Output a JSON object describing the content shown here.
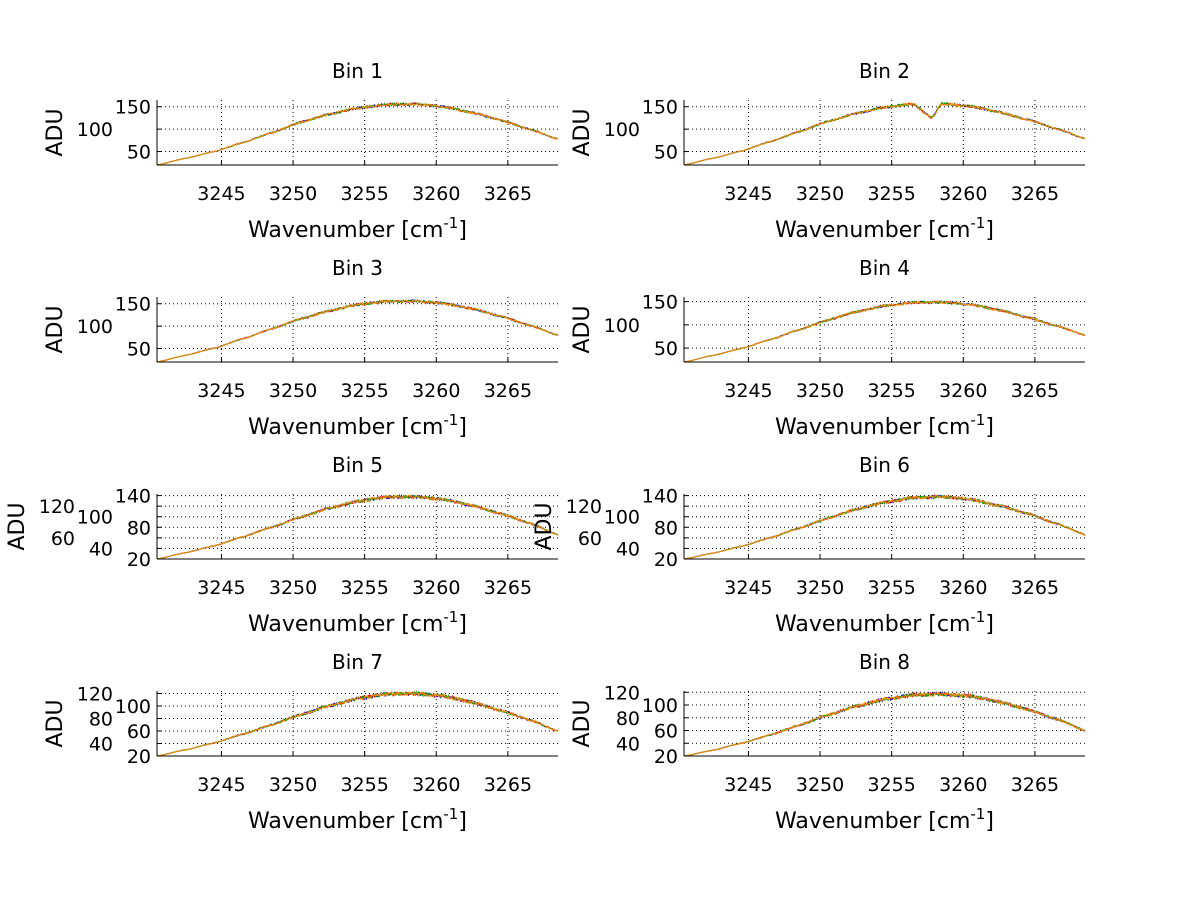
{
  "chart_data": [
    {
      "type": "line",
      "title": "Bin 1",
      "xlabel": "Wavenumber [cm",
      "xlabel_sup": "-1",
      "xlabel_end": "]",
      "ylabel": "ADU",
      "xlim": [
        3240.5,
        3268.5
      ],
      "ylim": [
        20,
        165
      ],
      "xticks": [
        3245,
        3250,
        3255,
        3260,
        3265
      ],
      "yticks": [
        50,
        100,
        150
      ],
      "grid": true,
      "x": [
        3240.5,
        3242.5,
        3244.5,
        3246.5,
        3248.5,
        3250.5,
        3252.5,
        3254.5,
        3256.5,
        3258.5,
        3260.5,
        3262.5,
        3264.5,
        3266.5,
        3268.5
      ],
      "y": [
        20,
        35,
        50,
        70,
        92,
        115,
        133,
        147,
        155,
        156,
        150,
        137,
        120,
        100,
        78
      ]
    },
    {
      "type": "line",
      "title": "Bin 2",
      "xlabel": "Wavenumber [cm",
      "xlabel_sup": "-1",
      "xlabel_end": "]",
      "ylabel": "ADU",
      "xlim": [
        3240.5,
        3268.5
      ],
      "ylim": [
        20,
        165
      ],
      "xticks": [
        3245,
        3250,
        3255,
        3260,
        3265
      ],
      "yticks": [
        50,
        100,
        150
      ],
      "grid": true,
      "x": [
        3240.5,
        3242.5,
        3244.5,
        3246.5,
        3248.5,
        3250.5,
        3252.5,
        3254.5,
        3256.5,
        3257.8,
        3258.5,
        3260.5,
        3262.5,
        3264.5,
        3266.5,
        3268.5
      ],
      "y": [
        20,
        35,
        51,
        72,
        94,
        117,
        135,
        149,
        156,
        125,
        157,
        151,
        138,
        121,
        101,
        79
      ]
    },
    {
      "type": "line",
      "title": "Bin 3",
      "xlabel": "Wavenumber [cm",
      "xlabel_sup": "-1",
      "xlabel_end": "]",
      "ylabel": "ADU",
      "xlim": [
        3240.5,
        3268.5
      ],
      "ylim": [
        20,
        165
      ],
      "xticks": [
        3245,
        3250,
        3255,
        3260,
        3265
      ],
      "yticks": [
        50,
        100,
        150
      ],
      "grid": true,
      "x": [
        3240.5,
        3242.5,
        3244.5,
        3246.5,
        3248.5,
        3250.5,
        3252.5,
        3254.5,
        3256.5,
        3258.5,
        3260.5,
        3262.5,
        3264.5,
        3266.5,
        3268.5
      ],
      "y": [
        20,
        35,
        51,
        72,
        94,
        116,
        134,
        148,
        155,
        156,
        151,
        139,
        122,
        102,
        80
      ]
    },
    {
      "type": "line",
      "title": "Bin 4",
      "xlabel": "Wavenumber [cm",
      "xlabel_sup": "-1",
      "xlabel_end": "]",
      "ylabel": "ADU",
      "xlim": [
        3240.5,
        3268.5
      ],
      "ylim": [
        20,
        160
      ],
      "xticks": [
        3245,
        3250,
        3255,
        3260,
        3265
      ],
      "yticks": [
        50,
        100,
        150
      ],
      "grid": true,
      "x": [
        3240.5,
        3242.5,
        3244.5,
        3246.5,
        3248.5,
        3250.5,
        3252.5,
        3254.5,
        3256.5,
        3258.5,
        3260.5,
        3262.5,
        3264.5,
        3266.5,
        3268.5
      ],
      "y": [
        20,
        34,
        49,
        68,
        89,
        110,
        128,
        141,
        148,
        149,
        144,
        132,
        116,
        98,
        78
      ]
    },
    {
      "type": "line",
      "title": "Bin 5",
      "xlabel": "Wavenumber [cm",
      "xlabel_sup": "-1",
      "xlabel_end": "]",
      "ylabel": "ADU",
      "xlim": [
        3240.5,
        3268.5
      ],
      "ylim": [
        20,
        143
      ],
      "xticks": [
        3245,
        3250,
        3255,
        3260,
        3265
      ],
      "yticks": [
        20,
        40,
        60,
        80,
        100,
        120,
        140
      ],
      "grid": true,
      "x": [
        3240.5,
        3242.5,
        3244.5,
        3246.5,
        3248.5,
        3250.5,
        3252.5,
        3254.5,
        3256.5,
        3258.5,
        3260.5,
        3262.5,
        3264.5,
        3266.5,
        3268.5
      ],
      "y": [
        20,
        32,
        45,
        62,
        80,
        99,
        116,
        129,
        137,
        138,
        133,
        121,
        106,
        88,
        66
      ]
    },
    {
      "type": "line",
      "title": "Bin 6",
      "xlabel": "Wavenumber [cm",
      "xlabel_sup": "-1",
      "xlabel_end": "]",
      "ylabel": "ADU",
      "xlim": [
        3240.5,
        3268.5
      ],
      "ylim": [
        20,
        143
      ],
      "xticks": [
        3245,
        3250,
        3255,
        3260,
        3265
      ],
      "yticks": [
        20,
        40,
        60,
        80,
        100,
        120,
        140
      ],
      "grid": true,
      "x": [
        3240.5,
        3242.5,
        3244.5,
        3246.5,
        3248.5,
        3250.5,
        3252.5,
        3254.5,
        3256.5,
        3258.5,
        3260.5,
        3262.5,
        3264.5,
        3266.5,
        3268.5
      ],
      "y": [
        20,
        31,
        44,
        60,
        78,
        97,
        114,
        127,
        136,
        138,
        133,
        121,
        106,
        87,
        66
      ]
    },
    {
      "type": "line",
      "title": "Bin 7",
      "xlabel": "Wavenumber [cm",
      "xlabel_sup": "-1",
      "xlabel_end": "]",
      "ylabel": "ADU",
      "xlim": [
        3240.5,
        3268.5
      ],
      "ylim": [
        20,
        124
      ],
      "xticks": [
        3245,
        3250,
        3255,
        3260,
        3265
      ],
      "yticks": [
        20,
        40,
        60,
        80,
        100,
        120
      ],
      "grid": true,
      "x": [
        3240.5,
        3242.5,
        3244.5,
        3246.5,
        3248.5,
        3250.5,
        3252.5,
        3254.5,
        3256.5,
        3258.5,
        3260.5,
        3262.5,
        3264.5,
        3266.5,
        3268.5
      ],
      "y": [
        20,
        30,
        41,
        55,
        70,
        86,
        100,
        112,
        119,
        120,
        116,
        106,
        93,
        78,
        60
      ]
    },
    {
      "type": "line",
      "title": "Bin 8",
      "xlabel": "Wavenumber [cm",
      "xlabel_sup": "-1",
      "xlabel_end": "]",
      "ylabel": "ADU",
      "xlim": [
        3240.5,
        3268.5
      ],
      "ylim": [
        20,
        122
      ],
      "xticks": [
        3245,
        3250,
        3255,
        3260,
        3265
      ],
      "yticks": [
        20,
        40,
        60,
        80,
        100,
        120
      ],
      "grid": true,
      "x": [
        3240.5,
        3242.5,
        3244.5,
        3246.5,
        3248.5,
        3250.5,
        3252.5,
        3254.5,
        3256.5,
        3258.5,
        3260.5,
        3262.5,
        3264.5,
        3266.5,
        3268.5
      ],
      "y": [
        20,
        29,
        40,
        53,
        68,
        84,
        98,
        109,
        116,
        117,
        114,
        105,
        93,
        78,
        60
      ]
    }
  ],
  "series_colors": [
    "#0000ff",
    "#ff0000",
    "#00a000",
    "#ff8c00"
  ]
}
